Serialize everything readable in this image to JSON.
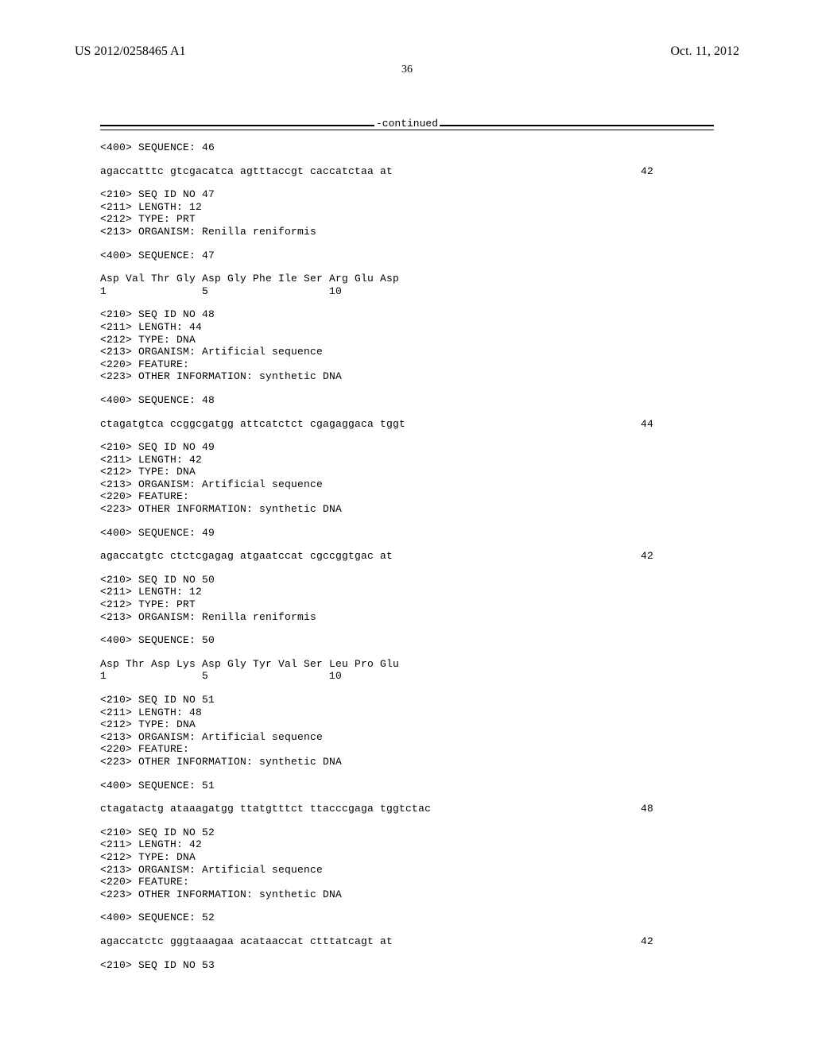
{
  "header": {
    "left": "US 2012/0258465 A1",
    "right": "Oct. 11, 2012"
  },
  "page_number": "36",
  "continued_label": "-continued",
  "blocks": [
    {
      "lines": [
        "<400> SEQUENCE: 46"
      ]
    },
    {
      "seq_row": {
        "text": "agaccatttc gtcgacatca agtttaccgt caccatctaa at",
        "len": "42"
      }
    },
    {
      "lines": [
        "<210> SEQ ID NO 47",
        "<211> LENGTH: 12",
        "<212> TYPE: PRT",
        "<213> ORGANISM: Renilla reniformis"
      ]
    },
    {
      "lines": [
        "<400> SEQUENCE: 47"
      ]
    },
    {
      "lines": [
        "Asp Val Thr Gly Asp Gly Phe Ile Ser Arg Glu Asp",
        "1               5                   10"
      ]
    },
    {
      "lines": [
        "<210> SEQ ID NO 48",
        "<211> LENGTH: 44",
        "<212> TYPE: DNA",
        "<213> ORGANISM: Artificial sequence",
        "<220> FEATURE:",
        "<223> OTHER INFORMATION: synthetic DNA"
      ]
    },
    {
      "lines": [
        "<400> SEQUENCE: 48"
      ]
    },
    {
      "seq_row": {
        "text": "ctagatgtca ccggcgatgg attcatctct cgagaggaca tggt",
        "len": "44"
      }
    },
    {
      "lines": [
        "<210> SEQ ID NO 49",
        "<211> LENGTH: 42",
        "<212> TYPE: DNA",
        "<213> ORGANISM: Artificial sequence",
        "<220> FEATURE:",
        "<223> OTHER INFORMATION: synthetic DNA"
      ]
    },
    {
      "lines": [
        "<400> SEQUENCE: 49"
      ]
    },
    {
      "seq_row": {
        "text": "agaccatgtc ctctcgagag atgaatccat cgccggtgac at",
        "len": "42"
      }
    },
    {
      "lines": [
        "<210> SEQ ID NO 50",
        "<211> LENGTH: 12",
        "<212> TYPE: PRT",
        "<213> ORGANISM: Renilla reniformis"
      ]
    },
    {
      "lines": [
        "<400> SEQUENCE: 50"
      ]
    },
    {
      "lines": [
        "Asp Thr Asp Lys Asp Gly Tyr Val Ser Leu Pro Glu",
        "1               5                   10"
      ]
    },
    {
      "lines": [
        "<210> SEQ ID NO 51",
        "<211> LENGTH: 48",
        "<212> TYPE: DNA",
        "<213> ORGANISM: Artificial sequence",
        "<220> FEATURE:",
        "<223> OTHER INFORMATION: synthetic DNA"
      ]
    },
    {
      "lines": [
        "<400> SEQUENCE: 51"
      ]
    },
    {
      "seq_row": {
        "text": "ctagatactg ataaagatgg ttatgtttct ttacccgaga tggtctac",
        "len": "48"
      }
    },
    {
      "lines": [
        "<210> SEQ ID NO 52",
        "<211> LENGTH: 42",
        "<212> TYPE: DNA",
        "<213> ORGANISM: Artificial sequence",
        "<220> FEATURE:",
        "<223> OTHER INFORMATION: synthetic DNA"
      ]
    },
    {
      "lines": [
        "<400> SEQUENCE: 52"
      ]
    },
    {
      "seq_row": {
        "text": "agaccatctc gggtaaagaa acataaccat ctttatcagt at",
        "len": "42"
      }
    },
    {
      "lines": [
        "<210> SEQ ID NO 53"
      ]
    }
  ]
}
